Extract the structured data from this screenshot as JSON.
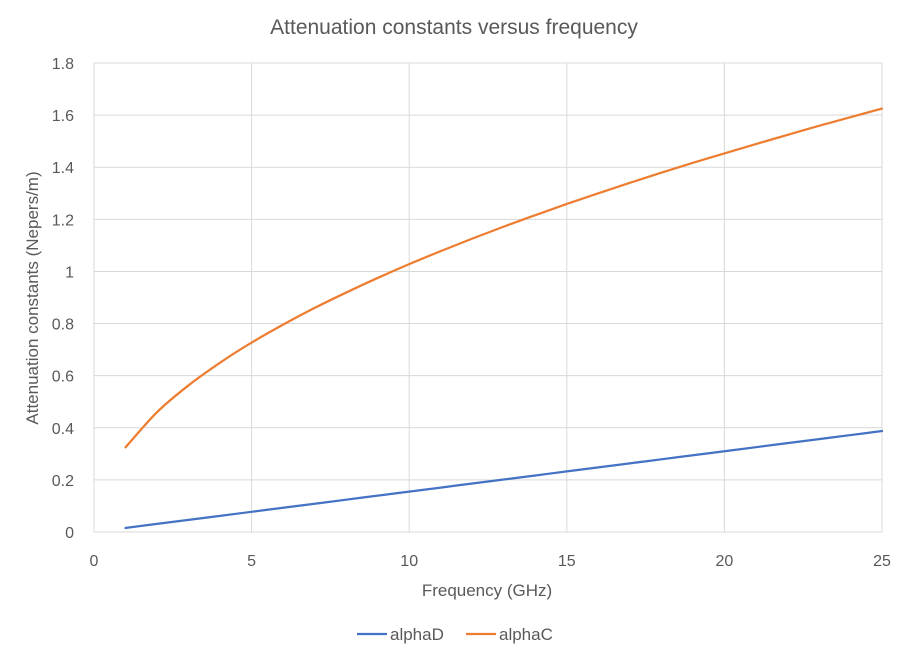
{
  "chart_data": {
    "type": "line",
    "title": "Attenuation constants versus frequency",
    "xlabel": "Frequency (GHz)",
    "ylabel": "Attenuation constants (Nepers/m)",
    "xlim": [
      0,
      25
    ],
    "ylim": [
      0,
      1.8
    ],
    "x_ticks": [
      "0",
      "5",
      "10",
      "15",
      "20",
      "25"
    ],
    "y_ticks": [
      "0",
      "0.2",
      "0.4",
      "0.6",
      "0.8",
      "1",
      "1.2",
      "1.4",
      "1.6",
      "1.8"
    ],
    "grid": true,
    "legend_position": "bottom",
    "x": [
      1,
      2,
      3,
      4,
      5,
      6,
      7,
      8,
      9,
      10,
      11,
      12,
      13,
      14,
      15,
      16,
      17,
      18,
      19,
      20,
      21,
      22,
      23,
      24,
      25
    ],
    "series": [
      {
        "name": "alphaD",
        "color": "#4472c4",
        "values": [
          0.0155,
          0.031,
          0.0465,
          0.062,
          0.0775,
          0.093,
          0.1085,
          0.124,
          0.1395,
          0.155,
          0.1705,
          0.186,
          0.2015,
          0.217,
          0.2325,
          0.248,
          0.2635,
          0.279,
          0.2945,
          0.31,
          0.3255,
          0.341,
          0.3565,
          0.372,
          0.3875
        ]
      },
      {
        "name": "alphaC",
        "color": "#ed7d31",
        "values": [
          0.325,
          0.46,
          0.563,
          0.65,
          0.727,
          0.796,
          0.86,
          0.919,
          0.975,
          1.028,
          1.078,
          1.126,
          1.172,
          1.216,
          1.259,
          1.3,
          1.34,
          1.379,
          1.417,
          1.453,
          1.489,
          1.524,
          1.559,
          1.592,
          1.625
        ]
      }
    ]
  }
}
